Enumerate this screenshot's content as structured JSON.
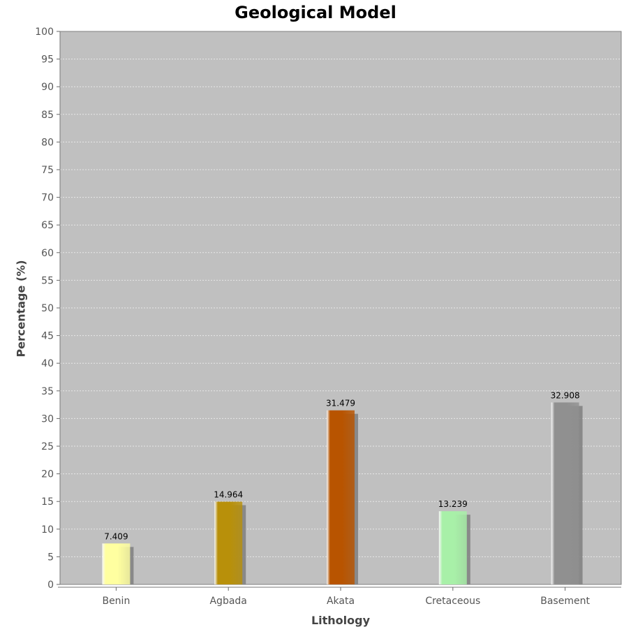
{
  "chart_data": {
    "type": "bar",
    "title": "Geological Model",
    "xlabel": "Lithology",
    "ylabel": "Percentage (%)",
    "ylim": [
      0,
      100
    ],
    "ytick_step": 5,
    "grid": true,
    "legend": "none",
    "categories": [
      "Benin",
      "Agbada",
      "Akata",
      "Cretaceous",
      "Basement"
    ],
    "values": [
      7.409,
      14.964,
      31.479,
      13.239,
      32.908
    ],
    "value_labels": [
      "7.409",
      "14.964",
      "31.479",
      "13.239",
      "32.908"
    ],
    "colors": [
      "#ffffa0",
      "#b8900a",
      "#b85400",
      "#a8f0a8",
      "#909090"
    ],
    "plot_background": "#c0c0c0"
  }
}
